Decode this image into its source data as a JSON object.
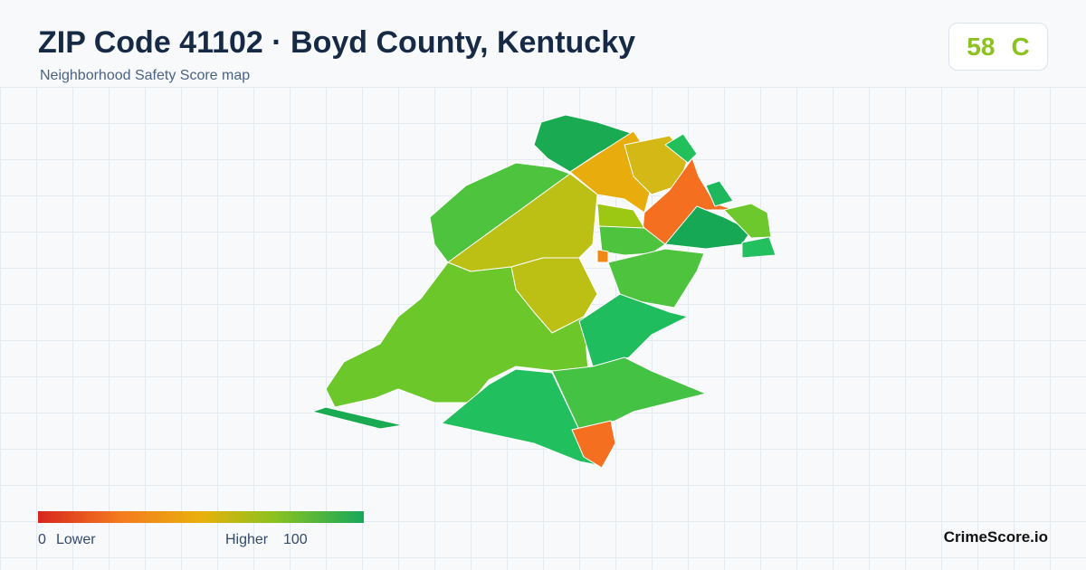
{
  "header": {
    "title": "ZIP Code 41102 · Boyd County, Kentucky",
    "subtitle": "Neighborhood Safety Score map"
  },
  "score": {
    "value": 58,
    "grade": "C"
  },
  "legend": {
    "min": 0,
    "min_label": "Lower",
    "max_label": "Higher",
    "max": 100
  },
  "brand": "CrimeScore.io"
}
